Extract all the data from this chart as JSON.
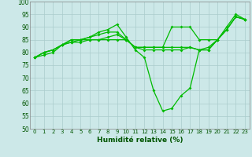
{
  "xlabel": "Humidité relative (%)",
  "bg_color": "#cce8e8",
  "grid_color": "#aacccc",
  "line_color": "#00bb00",
  "xlim": [
    -0.5,
    23.5
  ],
  "ylim": [
    50,
    100
  ],
  "xticks": [
    0,
    1,
    2,
    3,
    4,
    5,
    6,
    7,
    8,
    9,
    10,
    11,
    12,
    13,
    14,
    15,
    16,
    17,
    18,
    19,
    20,
    21,
    22,
    23
  ],
  "yticks": [
    50,
    55,
    60,
    65,
    70,
    75,
    80,
    85,
    90,
    95,
    100
  ],
  "lines": [
    [
      78,
      80,
      81,
      83,
      85,
      85,
      86,
      88,
      89,
      91,
      86,
      81,
      78,
      65,
      57,
      58,
      63,
      66,
      81,
      81,
      85,
      90,
      95,
      93
    ],
    [
      78,
      80,
      81,
      83,
      85,
      85,
      86,
      87,
      88,
      88,
      85,
      82,
      81,
      81,
      81,
      81,
      81,
      82,
      81,
      82,
      85,
      89,
      94,
      93
    ],
    [
      78,
      80,
      81,
      83,
      84,
      85,
      85,
      85,
      86,
      87,
      85,
      82,
      82,
      82,
      82,
      82,
      82,
      82,
      81,
      81,
      85,
      89,
      94,
      93
    ],
    [
      78,
      79,
      80,
      83,
      84,
      84,
      85,
      85,
      85,
      85,
      85,
      82,
      82,
      82,
      82,
      90,
      90,
      90,
      85,
      85,
      85,
      89,
      94,
      93
    ]
  ]
}
